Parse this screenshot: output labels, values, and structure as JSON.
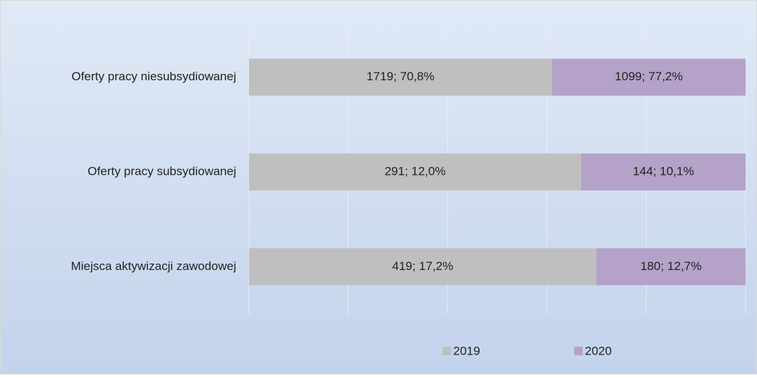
{
  "chart_data": {
    "type": "bar",
    "orientation": "horizontal",
    "stacking": "percent",
    "categories": [
      "Oferty pracy niesubsydiowanej",
      "Oferty pracy subsydiowanej",
      "Miejsca aktywizacji zawodowej"
    ],
    "series": [
      {
        "name": "2019",
        "color": "#bfbfbf",
        "values": [
          1719,
          291,
          419
        ],
        "value_labels": [
          "1719; 70,8%",
          "291; 12,0%",
          "419; 17,2%"
        ]
      },
      {
        "name": "2020",
        "color": "#b4a2c8",
        "values": [
          1099,
          144,
          180
        ],
        "value_labels": [
          "1099; 77,2%",
          "144; 10,1%",
          "180; 12,7%"
        ]
      }
    ],
    "xlim": [
      0,
      100
    ],
    "xticks": [
      0,
      20,
      40,
      60,
      80,
      100
    ],
    "grid": true,
    "legend": "bottom"
  }
}
